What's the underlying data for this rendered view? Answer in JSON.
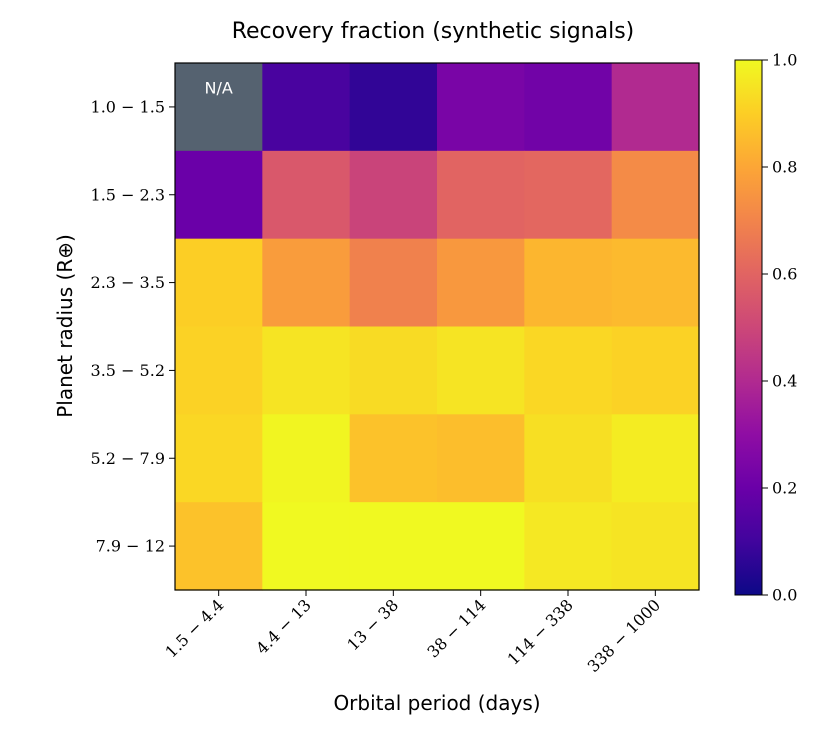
{
  "chart_data": {
    "type": "heatmap",
    "title": "Recovery fraction (synthetic signals)",
    "xlabel": "Orbital period (days)",
    "ylabel": "Planet radius (R⊕)",
    "x_categories": [
      "1.5 − 4.4",
      "4.4 − 13",
      "13 − 38",
      "38 − 114",
      "114 − 338",
      "338 − 1000"
    ],
    "y_categories": [
      "1.0 − 1.5",
      "1.5 − 2.3",
      "2.3 − 3.5",
      "3.5 − 5.2",
      "5.2 − 7.9",
      "7.9 − 12"
    ],
    "values": [
      [
        null,
        0.12,
        0.07,
        0.24,
        0.22,
        0.4
      ],
      [
        0.2,
        0.56,
        0.49,
        0.6,
        0.61,
        0.72
      ],
      [
        0.9,
        0.77,
        0.69,
        0.76,
        0.84,
        0.85
      ],
      [
        0.91,
        0.95,
        0.93,
        0.95,
        0.92,
        0.91
      ],
      [
        0.92,
        0.99,
        0.87,
        0.86,
        0.94,
        0.97
      ],
      [
        0.87,
        1.0,
        1.0,
        1.0,
        0.96,
        0.95
      ]
    ],
    "missing_label": "N/A",
    "missing_color": "#556270",
    "colormap": "plasma",
    "colorbar": {
      "range": [
        0.0,
        1.0
      ],
      "ticks": [
        0.0,
        0.2,
        0.4,
        0.6,
        0.8,
        1.0
      ],
      "tick_labels": [
        "0.0",
        "0.2",
        "0.4",
        "0.6",
        "0.8",
        "1.0"
      ]
    }
  }
}
